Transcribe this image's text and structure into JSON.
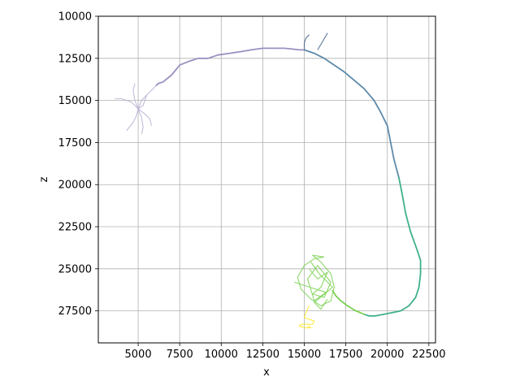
{
  "chart_data": {
    "type": "line",
    "title": "",
    "xlabel": "x",
    "ylabel": "z",
    "xlim": [
      2600,
      22900
    ],
    "ylim": [
      29400,
      10000
    ],
    "y_inverted": true,
    "grid": true,
    "xticks": [
      5000,
      7500,
      10000,
      12500,
      15000,
      17500,
      20000,
      22500
    ],
    "yticks": [
      10000,
      12500,
      15000,
      17500,
      20000,
      22500,
      25000,
      27500
    ],
    "xtick_labels": [
      "5000",
      "7500",
      "10000",
      "12500",
      "15000",
      "17500",
      "20000",
      "22500"
    ],
    "ytick_labels": [
      "10000",
      "12500",
      "15000",
      "17500",
      "20000",
      "22500",
      "25000",
      "27500"
    ],
    "colormap": "viridis",
    "series": [
      {
        "color": "#9b8fbf",
        "x": [
          6100,
          6200,
          6500,
          7000,
          7500,
          8000,
          8600,
          9200,
          9800,
          10500,
          11200,
          11800,
          12500,
          13200,
          13800,
          14300,
          14700,
          15000
        ],
        "y": [
          14100,
          14000,
          13900,
          13500,
          12900,
          12700,
          12500,
          12500,
          12300,
          12200,
          12100,
          12000,
          11900,
          11900,
          11900,
          11950,
          12000,
          12000
        ]
      },
      {
        "color": "#5d8aaa",
        "x": [
          15000,
          15600,
          16200,
          16800,
          17400,
          18000,
          18600,
          19200,
          19600,
          20000,
          20200,
          20400,
          20700
        ],
        "y": [
          12000,
          12200,
          12500,
          12900,
          13300,
          13800,
          14300,
          15000,
          15700,
          16500,
          17500,
          18500,
          19600
        ]
      },
      {
        "color": "#3fb08c",
        "x": [
          20700,
          20900,
          21100,
          21400,
          21800,
          22000,
          22000,
          21900,
          21700,
          21300,
          20800,
          20300,
          19800,
          19300,
          18900,
          18600
        ],
        "y": [
          19600,
          20600,
          21700,
          22800,
          23900,
          24500,
          25300,
          26100,
          26700,
          27200,
          27500,
          27600,
          27700,
          27800,
          27800,
          27700
        ]
      },
      {
        "color": "#7ad151",
        "x": [
          18600,
          18100,
          17600,
          17200,
          16900,
          16700
        ],
        "y": [
          27700,
          27500,
          27200,
          26900,
          26600,
          26300
        ]
      }
    ],
    "branches": [
      {
        "color": "#b9b0d4",
        "x": [
          5000,
          5200,
          5600,
          6100
        ],
        "y": [
          15500,
          15000,
          14600,
          14100
        ]
      },
      {
        "color": "#b9b0d4",
        "x": [
          5000,
          4600,
          4000,
          3600
        ],
        "y": [
          15500,
          15100,
          14900,
          14900
        ]
      },
      {
        "color": "#b9b0d4",
        "x": [
          5000,
          4900,
          4700,
          4300
        ],
        "y": [
          15500,
          15900,
          16300,
          16800
        ]
      },
      {
        "color": "#b9b0d4",
        "x": [
          5000,
          5200,
          5300,
          5200
        ],
        "y": [
          15500,
          16000,
          16600,
          17000
        ]
      },
      {
        "color": "#b9b0d4",
        "x": [
          5000,
          5400,
          5700,
          5800
        ],
        "y": [
          15500,
          15800,
          16100,
          16500
        ]
      },
      {
        "color": "#b9b0d4",
        "x": [
          5000,
          4800,
          4700,
          4800
        ],
        "y": [
          15500,
          15000,
          14400,
          14000
        ]
      },
      {
        "color": "#b9b0d4",
        "x": [
          5000,
          5300,
          5500
        ],
        "y": [
          15500,
          15300,
          14700
        ]
      },
      {
        "color": "#3f5f86",
        "x": [
          15000,
          15000,
          15100,
          15300
        ],
        "y": [
          12000,
          11600,
          11300,
          11100
        ]
      },
      {
        "color": "#3f5f86",
        "x": [
          15800,
          16100,
          16400
        ],
        "y": [
          12000,
          11500,
          11000
        ]
      },
      {
        "color": "#7ad151",
        "x": [
          16200,
          15600,
          15000,
          14600,
          14800,
          15400,
          16000,
          16600,
          16800,
          16600,
          16000,
          15500,
          16200
        ],
        "y": [
          24300,
          24400,
          24800,
          25500,
          26200,
          26800,
          27200,
          26900,
          26100,
          25300,
          24600,
          24200,
          24300
        ]
      },
      {
        "color": "#7ad151",
        "x": [
          15300,
          15800,
          16400,
          16000,
          15500,
          16200,
          16600,
          15800,
          15200,
          15600,
          16300,
          14400
        ],
        "y": [
          25000,
          25600,
          25200,
          26100,
          26500,
          26700,
          25800,
          24800,
          25600,
          26900,
          26400,
          25800
        ]
      },
      {
        "color": "#7ad151",
        "x": [
          16400,
          16000,
          15600,
          16700,
          15900,
          15400
        ],
        "y": [
          26800,
          27400,
          27000,
          26100,
          25300,
          24600
        ]
      },
      {
        "color": "#fde725",
        "x": [
          15300,
          15100,
          15000,
          15300,
          15600,
          15500,
          15100,
          14800,
          14700,
          15000,
          15400,
          15200
        ],
        "y": [
          27200,
          27600,
          27900,
          28000,
          28100,
          28300,
          28300,
          28300,
          28400,
          28500,
          28500,
          28400
        ]
      }
    ]
  }
}
